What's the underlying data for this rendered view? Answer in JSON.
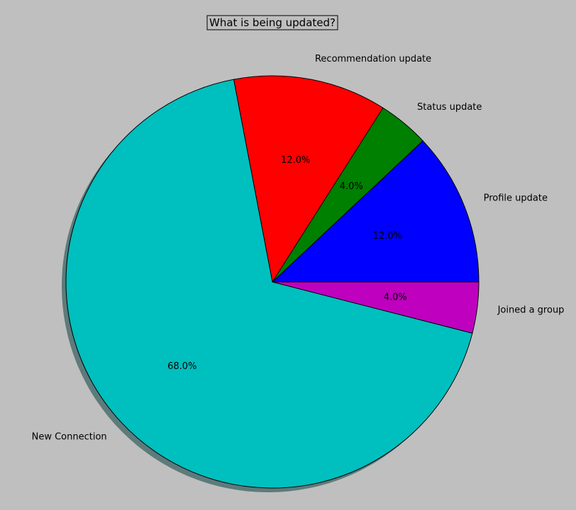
{
  "chart_data": {
    "type": "pie",
    "title": "What is being updated?",
    "categories": [
      "Profile update",
      "Status update",
      "Recommendation update",
      "New Connection",
      "Joined a group"
    ],
    "values": [
      12.0,
      4.0,
      12.0,
      68.0,
      4.0
    ],
    "percent_labels": [
      "12.0%",
      "4.0%",
      "12.0%",
      "68.0%",
      "4.0%"
    ],
    "colors": [
      "#0000ff",
      "#008000",
      "#ff0000",
      "#00bfbf",
      "#bf00bf"
    ],
    "shadow": true,
    "start_angle_deg": 0,
    "direction": "counterclockwise"
  }
}
